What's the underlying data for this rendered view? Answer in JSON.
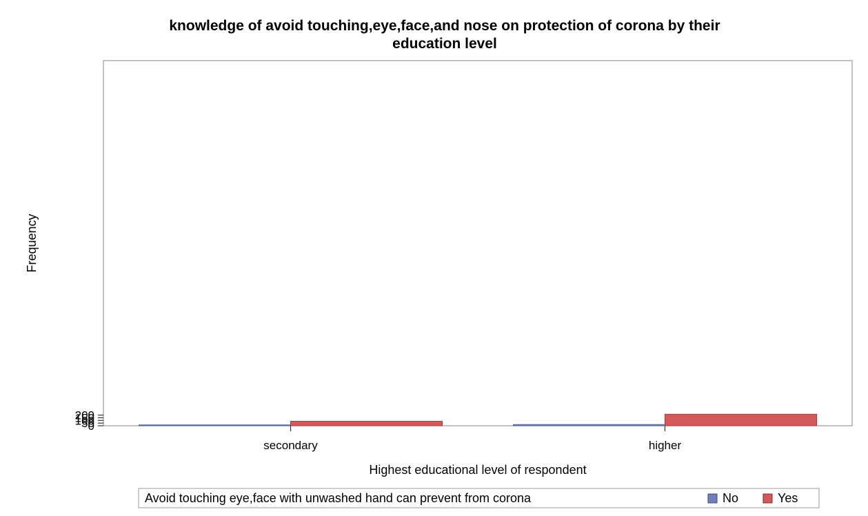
{
  "chart_data": {
    "type": "bar",
    "title": "knowledge of avoid touching,eye,face,and nose on protection of corona by their education level",
    "title_lines": [
      "knowledge of avoid touching,eye,face,and nose on protection of corona by their",
      "education level"
    ],
    "xlabel": "Highest educational level of respondent",
    "ylabel": "Frequency",
    "categories": [
      "secondary",
      "higher"
    ],
    "series": [
      {
        "name": "No",
        "values": [
          16,
          23
        ],
        "color": "#7080b8"
      },
      {
        "name": "Yes",
        "values": [
          85,
          217
        ],
        "color": "#d25a5a"
      }
    ],
    "ylim": [
      0,
      220
    ],
    "yticks": [
      0,
      50,
      100,
      150,
      200
    ],
    "grid": false,
    "legend": {
      "title": "Avoid touching eye,face with unwashed hand can prevent from corona",
      "placement": "bottom"
    }
  }
}
